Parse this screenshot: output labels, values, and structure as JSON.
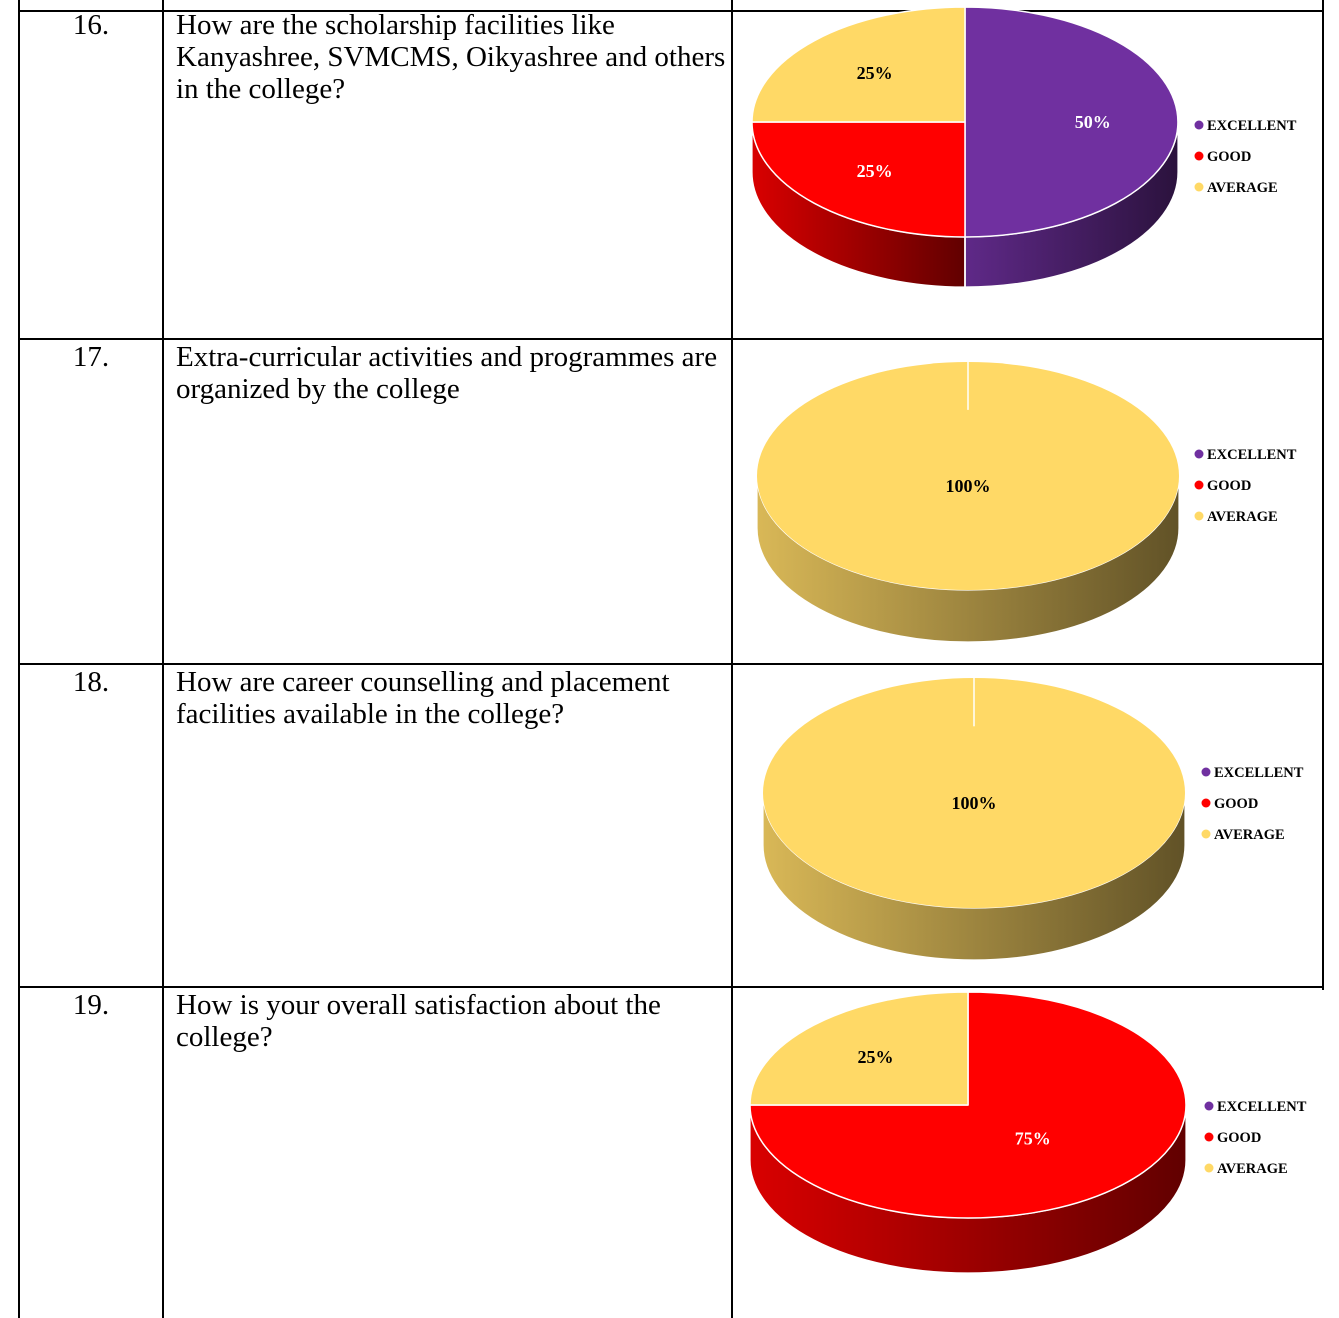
{
  "colors": {
    "excellent": "#7030A0",
    "good": "#FF0000",
    "average": "#FFD966"
  },
  "rows": [
    {
      "number": "16.",
      "question": "How are the scholarship facilities like Kanyashree, SVMCMS, Oikyashree and others in the college?"
    },
    {
      "number": "17.",
      "question": "Extra-curricular activities and programmes are organized by the college"
    },
    {
      "number": "18.",
      "question": "How are career counselling and placement facilities available in the college?"
    },
    {
      "number": "19.",
      "question": "How is your overall satisfaction about the college?"
    }
  ],
  "chart_data": [
    {
      "type": "pie",
      "categories": [
        "EXCELLENT",
        "GOOD",
        "AVERAGE"
      ],
      "values": [
        50,
        25,
        25
      ],
      "labels": [
        "50%",
        "25%",
        "25%"
      ],
      "legend_position": "right",
      "style": "3d"
    },
    {
      "type": "pie",
      "categories": [
        "EXCELLENT",
        "GOOD",
        "AVERAGE"
      ],
      "values": [
        0,
        0,
        100
      ],
      "labels": [
        "",
        "",
        "100%"
      ],
      "legend_position": "right",
      "style": "3d"
    },
    {
      "type": "pie",
      "categories": [
        "EXCELLENT",
        "GOOD",
        "AVERAGE"
      ],
      "values": [
        0,
        0,
        100
      ],
      "labels": [
        "",
        "",
        "100%"
      ],
      "legend_position": "right",
      "style": "3d"
    },
    {
      "type": "pie",
      "categories": [
        "EXCELLENT",
        "GOOD",
        "AVERAGE"
      ],
      "values": [
        0,
        75,
        25
      ],
      "labels": [
        "",
        "75%",
        "25%"
      ],
      "legend_position": "right",
      "style": "3d"
    }
  ]
}
